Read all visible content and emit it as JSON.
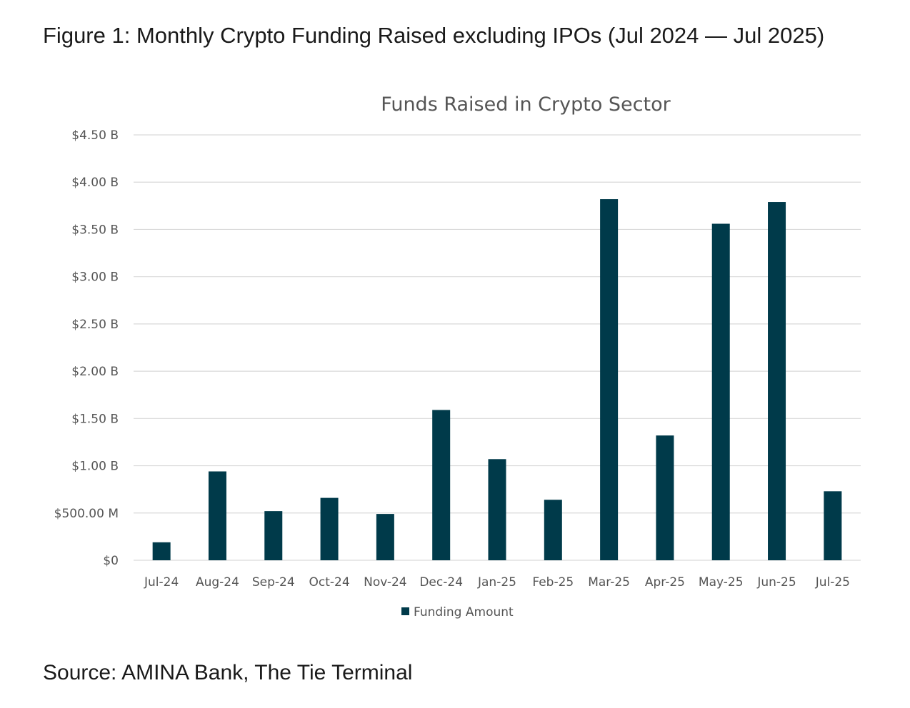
{
  "figure_title": "Figure 1: Monthly Crypto Funding Raised excluding IPOs (Jul 2024 — Jul 2025)",
  "source": "Source: AMINA Bank, The Tie Terminal",
  "colors": {
    "bar": "#003A4A",
    "grid": "#d9d9d9"
  },
  "chart_data": {
    "type": "bar",
    "title": "Funds Raised in Crypto Sector",
    "xlabel": "",
    "ylabel": "",
    "ylim": [
      0,
      4.5
    ],
    "grid": true,
    "legend_placement": "bottom",
    "yticks": [
      0,
      0.5,
      1,
      1.5,
      2,
      2.5,
      3,
      3.5,
      4,
      4.5
    ],
    "ytick_labels": [
      "$0",
      "$500.00 M",
      "$1.00 B",
      "$1.50 B",
      "$2.00 B",
      "$2.50 B",
      "$3.00 B",
      "$3.50 B",
      "$4.00 B",
      "$4.50 B"
    ],
    "categories": [
      "Jul-24",
      "Aug-24",
      "Sep-24",
      "Oct-24",
      "Nov-24",
      "Dec-24",
      "Jan-25",
      "Feb-25",
      "Mar-25",
      "Apr-25",
      "May-25",
      "Jun-25",
      "Jul-25"
    ],
    "series": [
      {
        "name": "Funding Amount",
        "unit": "USD billions",
        "values": [
          0.19,
          0.94,
          0.52,
          0.66,
          0.49,
          1.59,
          1.07,
          0.64,
          3.82,
          1.32,
          3.56,
          3.79,
          0.73
        ]
      }
    ]
  }
}
